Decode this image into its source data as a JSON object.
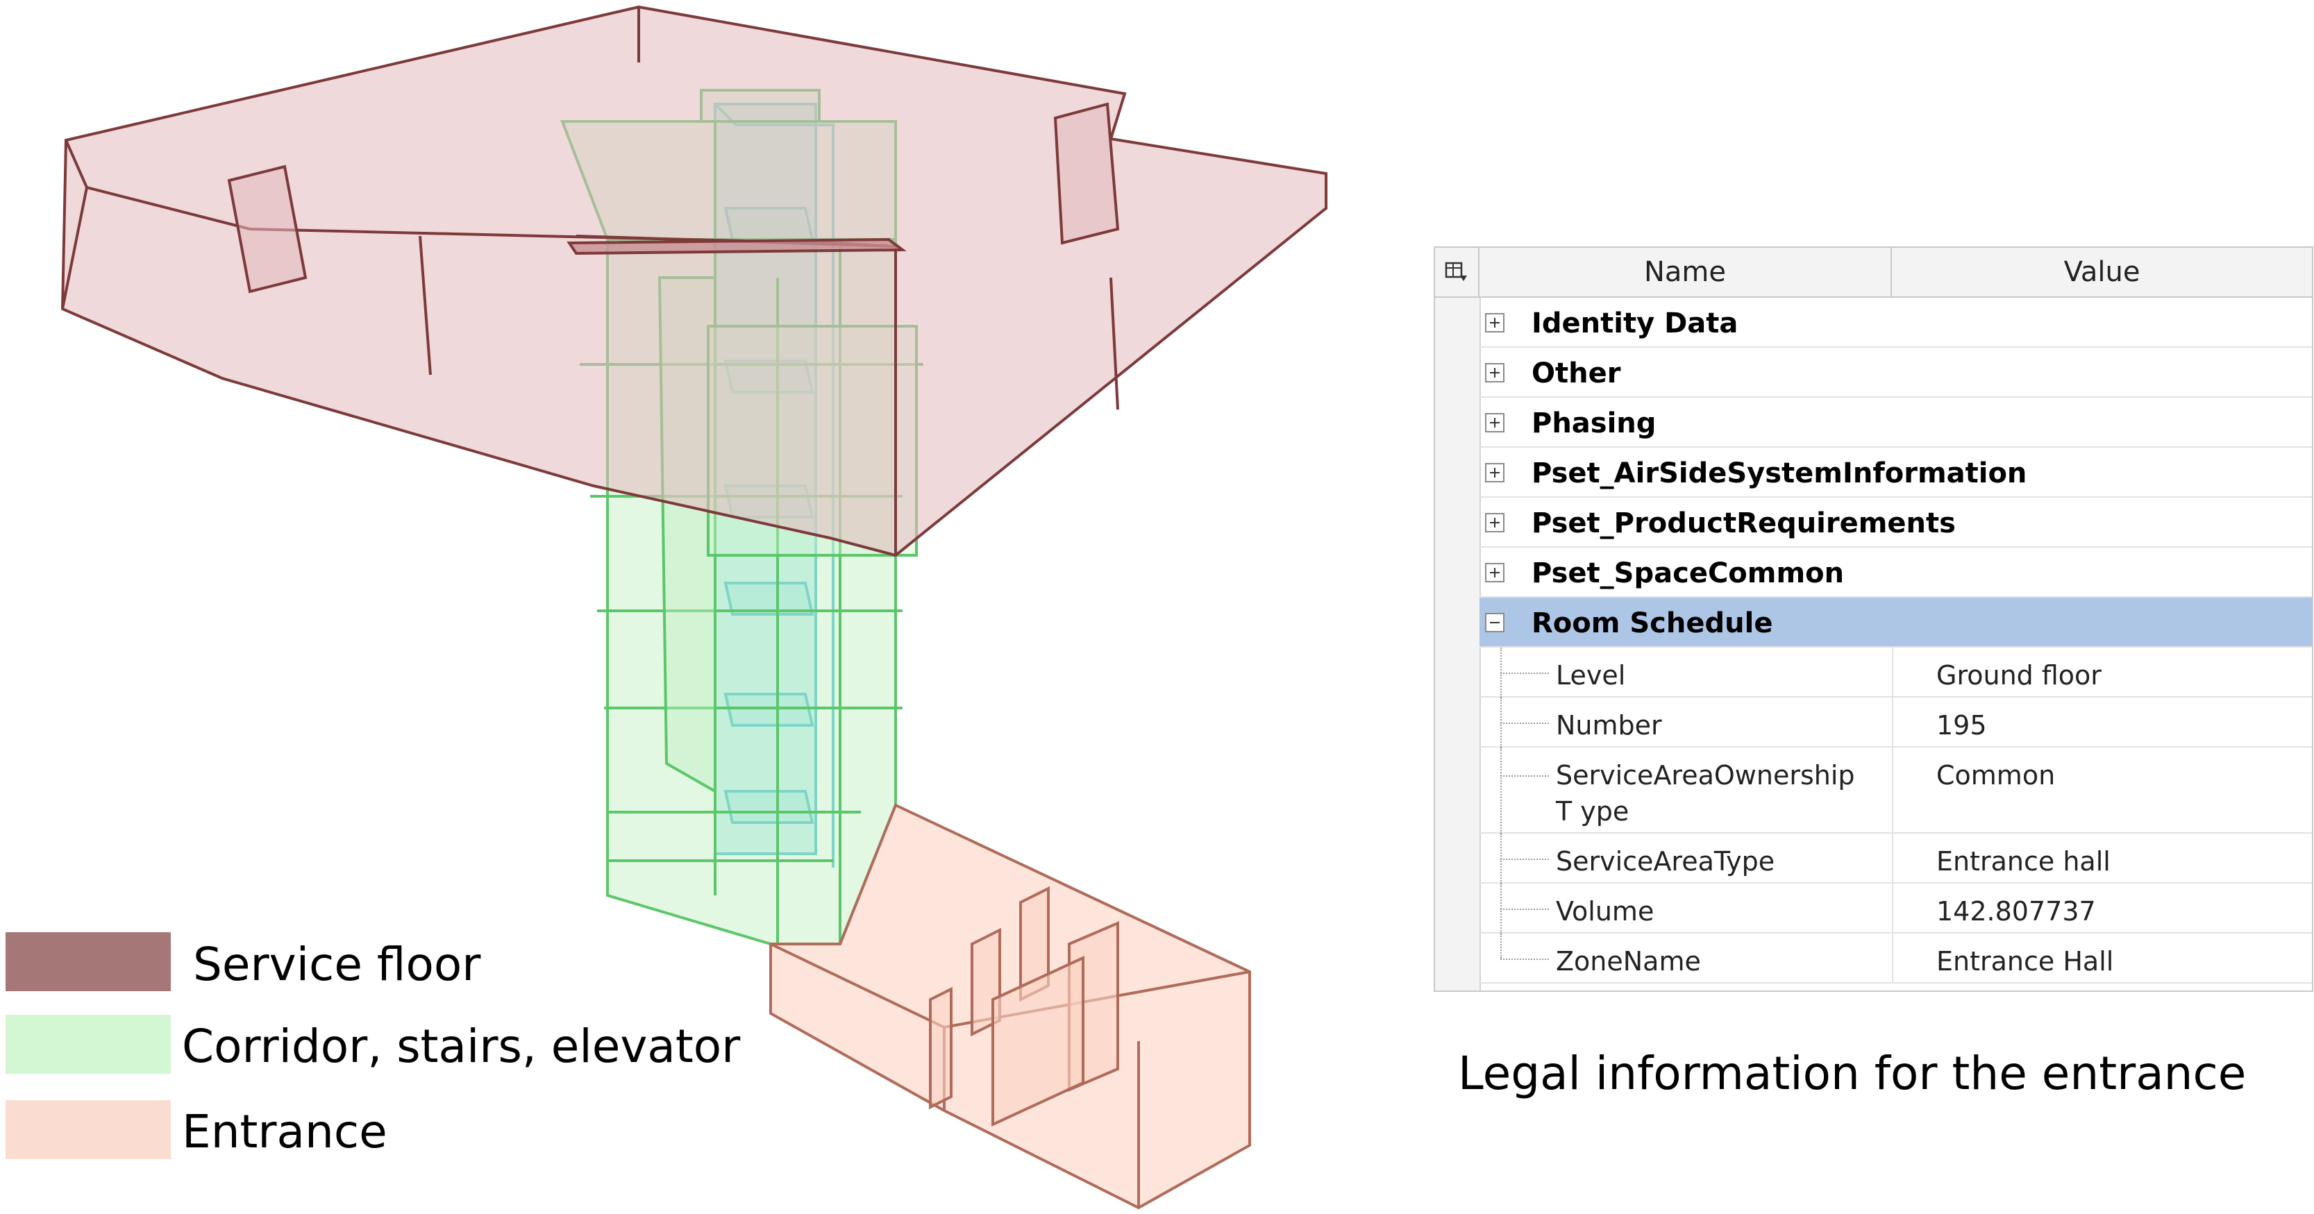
{
  "legend": {
    "items": [
      {
        "label": "Service floor",
        "color": "#a57777"
      },
      {
        "label": "Corridor, stairs, elevator",
        "color": "#d2f7d2"
      },
      {
        "label": "Entrance",
        "color": "#fbdcd0"
      }
    ]
  },
  "colors": {
    "service_floor_fill": "#e4b9bd",
    "service_floor_stroke": "#7d3a3a",
    "corridor_fill": "#bff0c2",
    "corridor_stroke": "#5cc66a",
    "elevator_fill": "#9ce6e6",
    "elevator_stroke": "#4cc0c8",
    "entrance_fill": "#fbd3c4",
    "entrance_stroke": "#b06b5a",
    "selected_row": "#aec6e6"
  },
  "properties_panel": {
    "columns": {
      "name": "Name",
      "value": "Value"
    },
    "groups": [
      {
        "label": "Identity Data",
        "expanded": false
      },
      {
        "label": "Other",
        "expanded": false
      },
      {
        "label": "Phasing",
        "expanded": false
      },
      {
        "label": "Pset_AirSideSystemInformation",
        "expanded": false
      },
      {
        "label": "Pset_ProductRequirements",
        "expanded": false
      },
      {
        "label": "Pset_SpaceCommon",
        "expanded": false
      },
      {
        "label": "Room Schedule",
        "expanded": true
      }
    ],
    "room_schedule": [
      {
        "name": "Level",
        "value": "Ground floor"
      },
      {
        "name": "Number",
        "value": "195"
      },
      {
        "name": "ServiceAreaOwnershipT ype",
        "value": "Common"
      },
      {
        "name": "ServiceAreaType",
        "value": "Entrance hall"
      },
      {
        "name": "Volume",
        "value": "142.807737"
      },
      {
        "name": "ZoneName",
        "value": "Entrance Hall"
      }
    ]
  },
  "caption": "Legal information for the entrance"
}
